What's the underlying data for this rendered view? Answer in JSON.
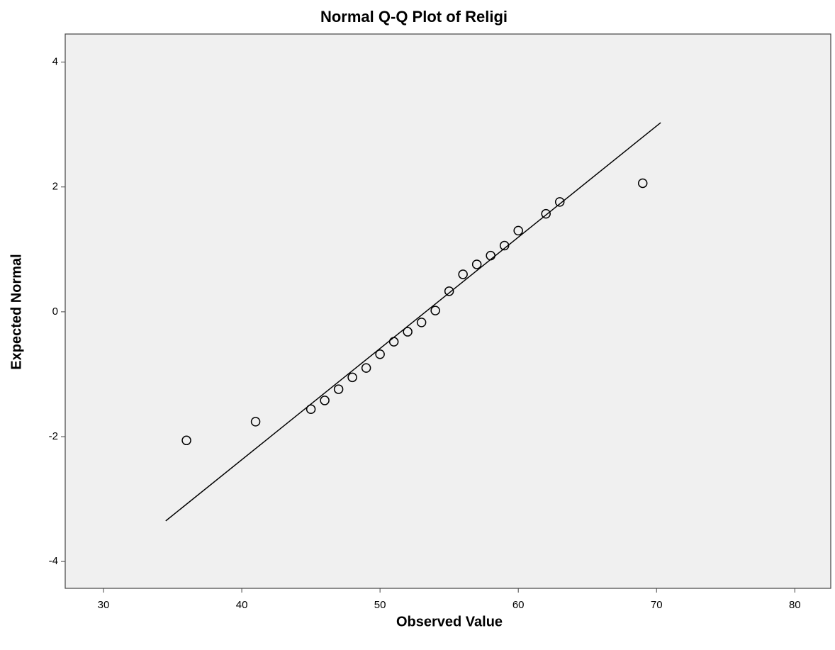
{
  "chart_data": {
    "type": "scatter",
    "title": "Normal Q-Q Plot of Religi",
    "x_label": "Observed Value",
    "y_label": "Expected Normal",
    "x": [
      36,
      41,
      45,
      46,
      47,
      48,
      49,
      50,
      51,
      52,
      53,
      54,
      55,
      56,
      57,
      58,
      59,
      60,
      62,
      63,
      69
    ],
    "values": [
      -2.06,
      -1.76,
      -1.56,
      -1.42,
      -1.24,
      -1.05,
      -0.9,
      -0.68,
      -0.48,
      -0.32,
      -0.17,
      0.02,
      0.33,
      0.6,
      0.76,
      0.9,
      1.06,
      1.3,
      1.57,
      1.76,
      2.06
    ],
    "color": "#000000",
    "reference_line": {
      "x": [
        34.5,
        70.3
      ],
      "y": [
        -3.35,
        3.03
      ]
    },
    "xlim": [
      27.23,
      82.6
    ],
    "xticks": [
      30,
      40,
      50,
      60,
      70,
      80
    ],
    "ylim": [
      -4.43,
      4.45
    ],
    "yticks": [
      -4,
      -2,
      0,
      2,
      4
    ],
    "grid": false
  }
}
